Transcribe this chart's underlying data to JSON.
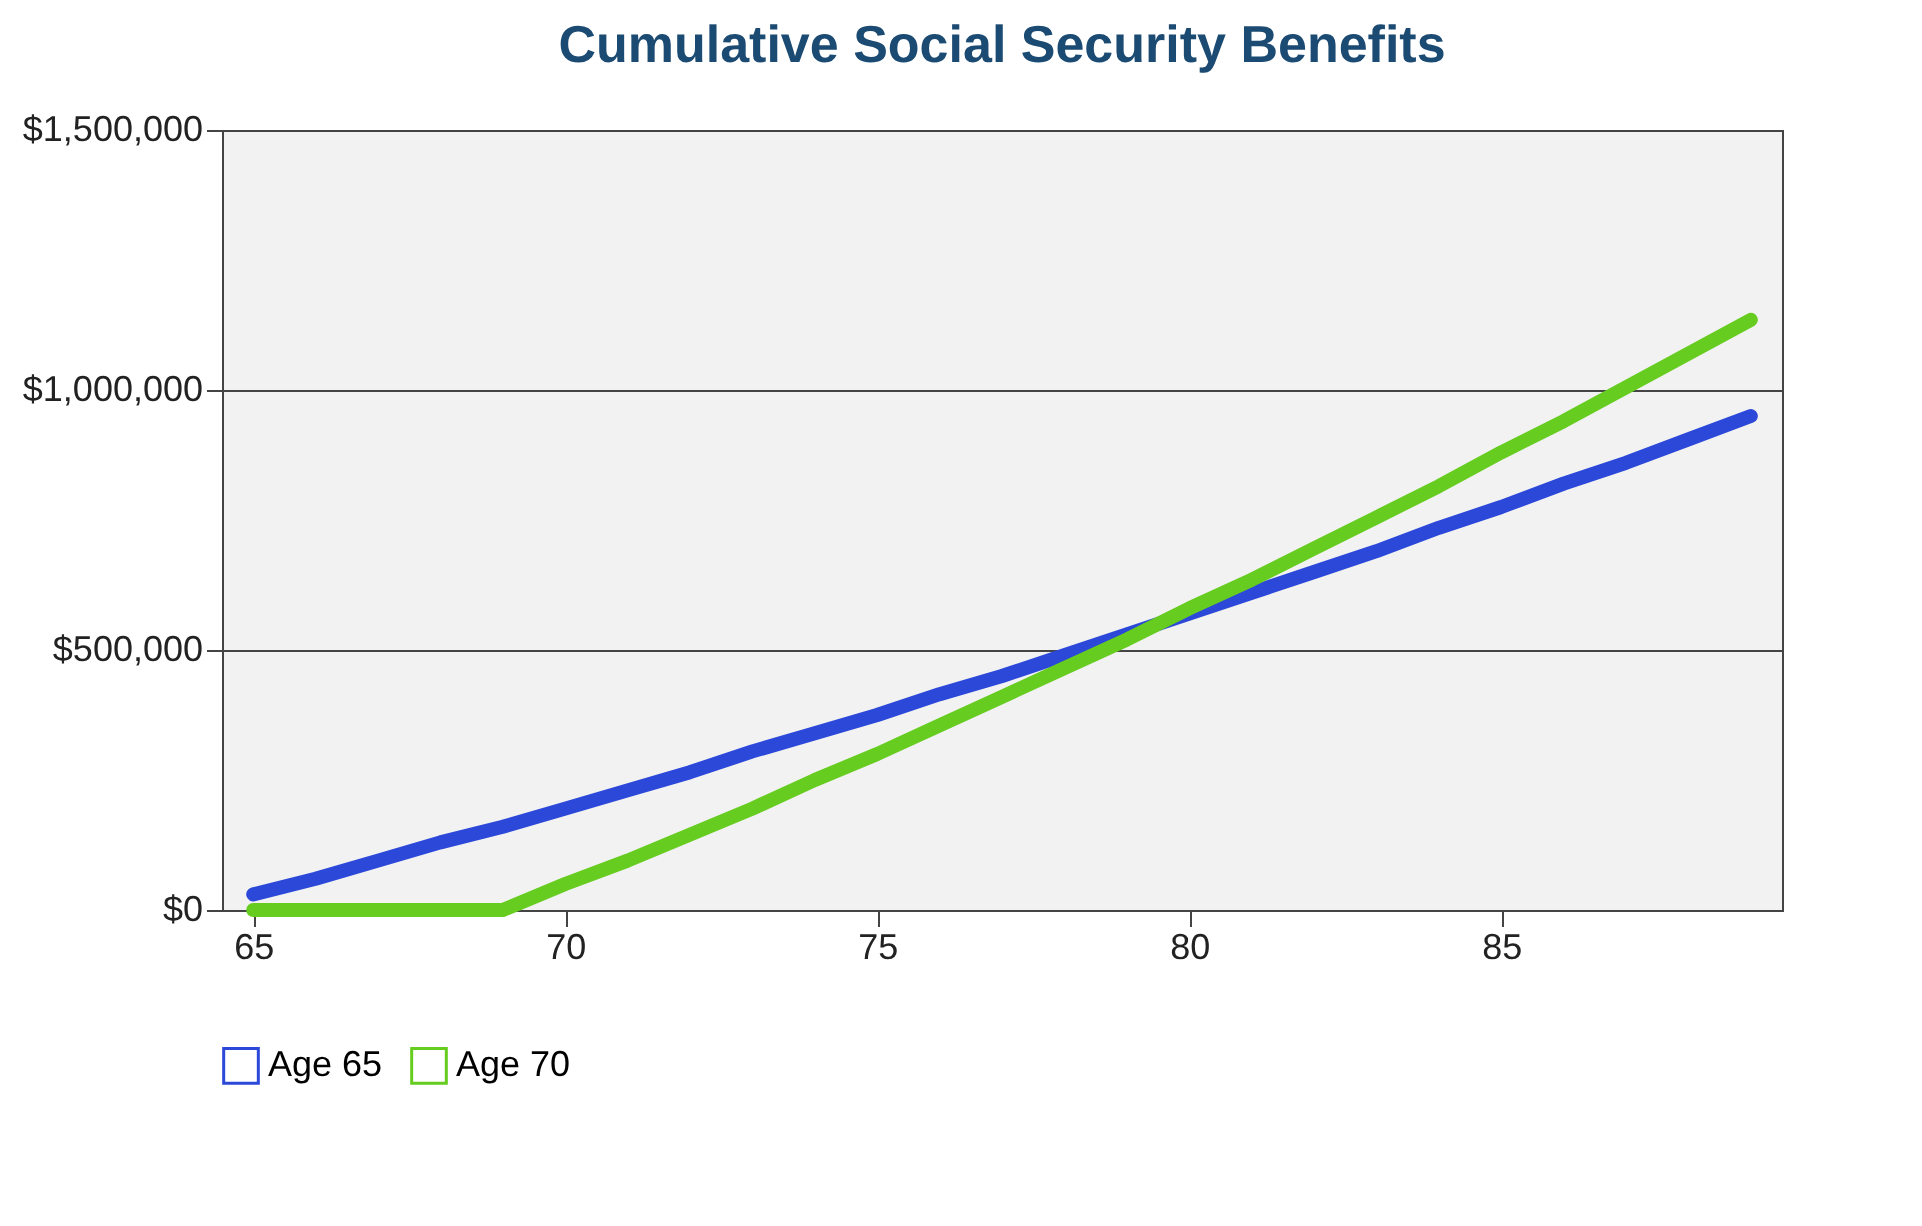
{
  "chart_data": {
    "type": "line",
    "title": "Cumulative Social Security Benefits",
    "x": [
      65,
      66,
      67,
      68,
      69,
      70,
      71,
      72,
      73,
      74,
      75,
      76,
      77,
      78,
      79,
      80,
      81,
      82,
      83,
      84,
      85,
      86,
      87,
      88,
      89
    ],
    "series": [
      {
        "name": "Age 65",
        "color": "#2b48d9",
        "values": [
          30000,
          60000,
          95000,
          130000,
          160000,
          195000,
          230000,
          265000,
          305000,
          340000,
          375000,
          415000,
          450000,
          490000,
          530000,
          570000,
          610000,
          650000,
          690000,
          735000,
          775000,
          820000,
          860000,
          905000,
          950000
        ]
      },
      {
        "name": "Age 70",
        "color": "#66cc1f",
        "values": [
          0,
          0,
          0,
          0,
          0,
          50000,
          95000,
          145000,
          195000,
          250000,
          300000,
          355000,
          410000,
          465000,
          520000,
          580000,
          635000,
          695000,
          755000,
          815000,
          880000,
          940000,
          1005000,
          1070000,
          1135000
        ]
      }
    ],
    "xlim": [
      64.5,
      89.5
    ],
    "xticks": [
      65,
      70,
      75,
      80,
      85
    ],
    "ylim": [
      0,
      1500000
    ],
    "yticks": [
      {
        "value": 0,
        "label": "$0"
      },
      {
        "value": 500000,
        "label": "$500,000"
      },
      {
        "value": 1000000,
        "label": "$1,000,000"
      },
      {
        "value": 1500000,
        "label": "$1,500,000"
      }
    ],
    "grid": "y",
    "legend": "bottom"
  }
}
